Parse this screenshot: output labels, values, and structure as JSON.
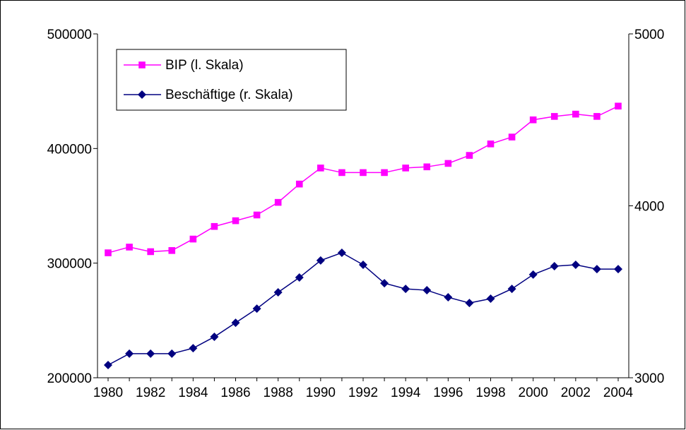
{
  "chart_data": {
    "type": "line",
    "categories": [
      "1980",
      null,
      "1982",
      null,
      "1984",
      null,
      "1986",
      null,
      "1988",
      null,
      "1990",
      null,
      "1992",
      null,
      "1994",
      null,
      "1996",
      null,
      "1998",
      null,
      "2000",
      null,
      "2002",
      null,
      "2004"
    ],
    "series": [
      {
        "name": "BIP (l. Skala)",
        "color": "#ff00ff",
        "marker": "square",
        "values": [
          309000,
          314000,
          310000,
          311000,
          321000,
          332000,
          337000,
          342000,
          353000,
          369000,
          383000,
          379000,
          379000,
          379000,
          383000,
          384000,
          387000,
          394000,
          404000,
          410000,
          425000,
          428000,
          430000,
          428000,
          437000
        ]
      },
      {
        "name": "Beschäftige (r. Skala)",
        "color": "#000080",
        "marker": "diamond",
        "axis": "y2",
        "values": [
          3074,
          3140,
          3140,
          3140,
          3172,
          3238,
          3320,
          3402,
          3497,
          3583,
          3682,
          3727,
          3657,
          3550,
          3517,
          3509,
          3468,
          3435,
          3460,
          3517,
          3600,
          3649,
          3657,
          3632,
          3632
        ]
      }
    ],
    "ylim": [
      200000,
      500000
    ],
    "yticks": [
      200000,
      300000,
      400000,
      500000
    ],
    "y2lim": [
      3000,
      5000
    ],
    "y2ticks": [
      3000,
      4000,
      5000
    ],
    "grid": false,
    "legend": "upper-left"
  }
}
